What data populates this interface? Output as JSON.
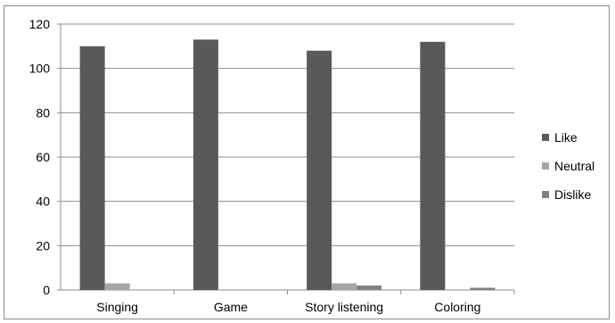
{
  "chart_data": {
    "type": "bar",
    "title": "",
    "xlabel": "",
    "ylabel": "",
    "categories": [
      "Singing",
      "Game",
      "Story listening",
      "Coloring"
    ],
    "series": [
      {
        "name": "Like",
        "values": [
          110,
          113,
          108,
          112
        ],
        "color": "#595959"
      },
      {
        "name": "Neutral",
        "values": [
          3,
          0,
          3,
          0
        ],
        "color": "#a6a6a6"
      },
      {
        "name": "Dislike",
        "values": [
          0,
          0,
          2,
          1
        ],
        "color": "#808080"
      }
    ],
    "ylim": [
      0,
      120
    ],
    "yticks": [
      0,
      20,
      40,
      60,
      80,
      100,
      120
    ],
    "grid": true,
    "legend": "right"
  }
}
